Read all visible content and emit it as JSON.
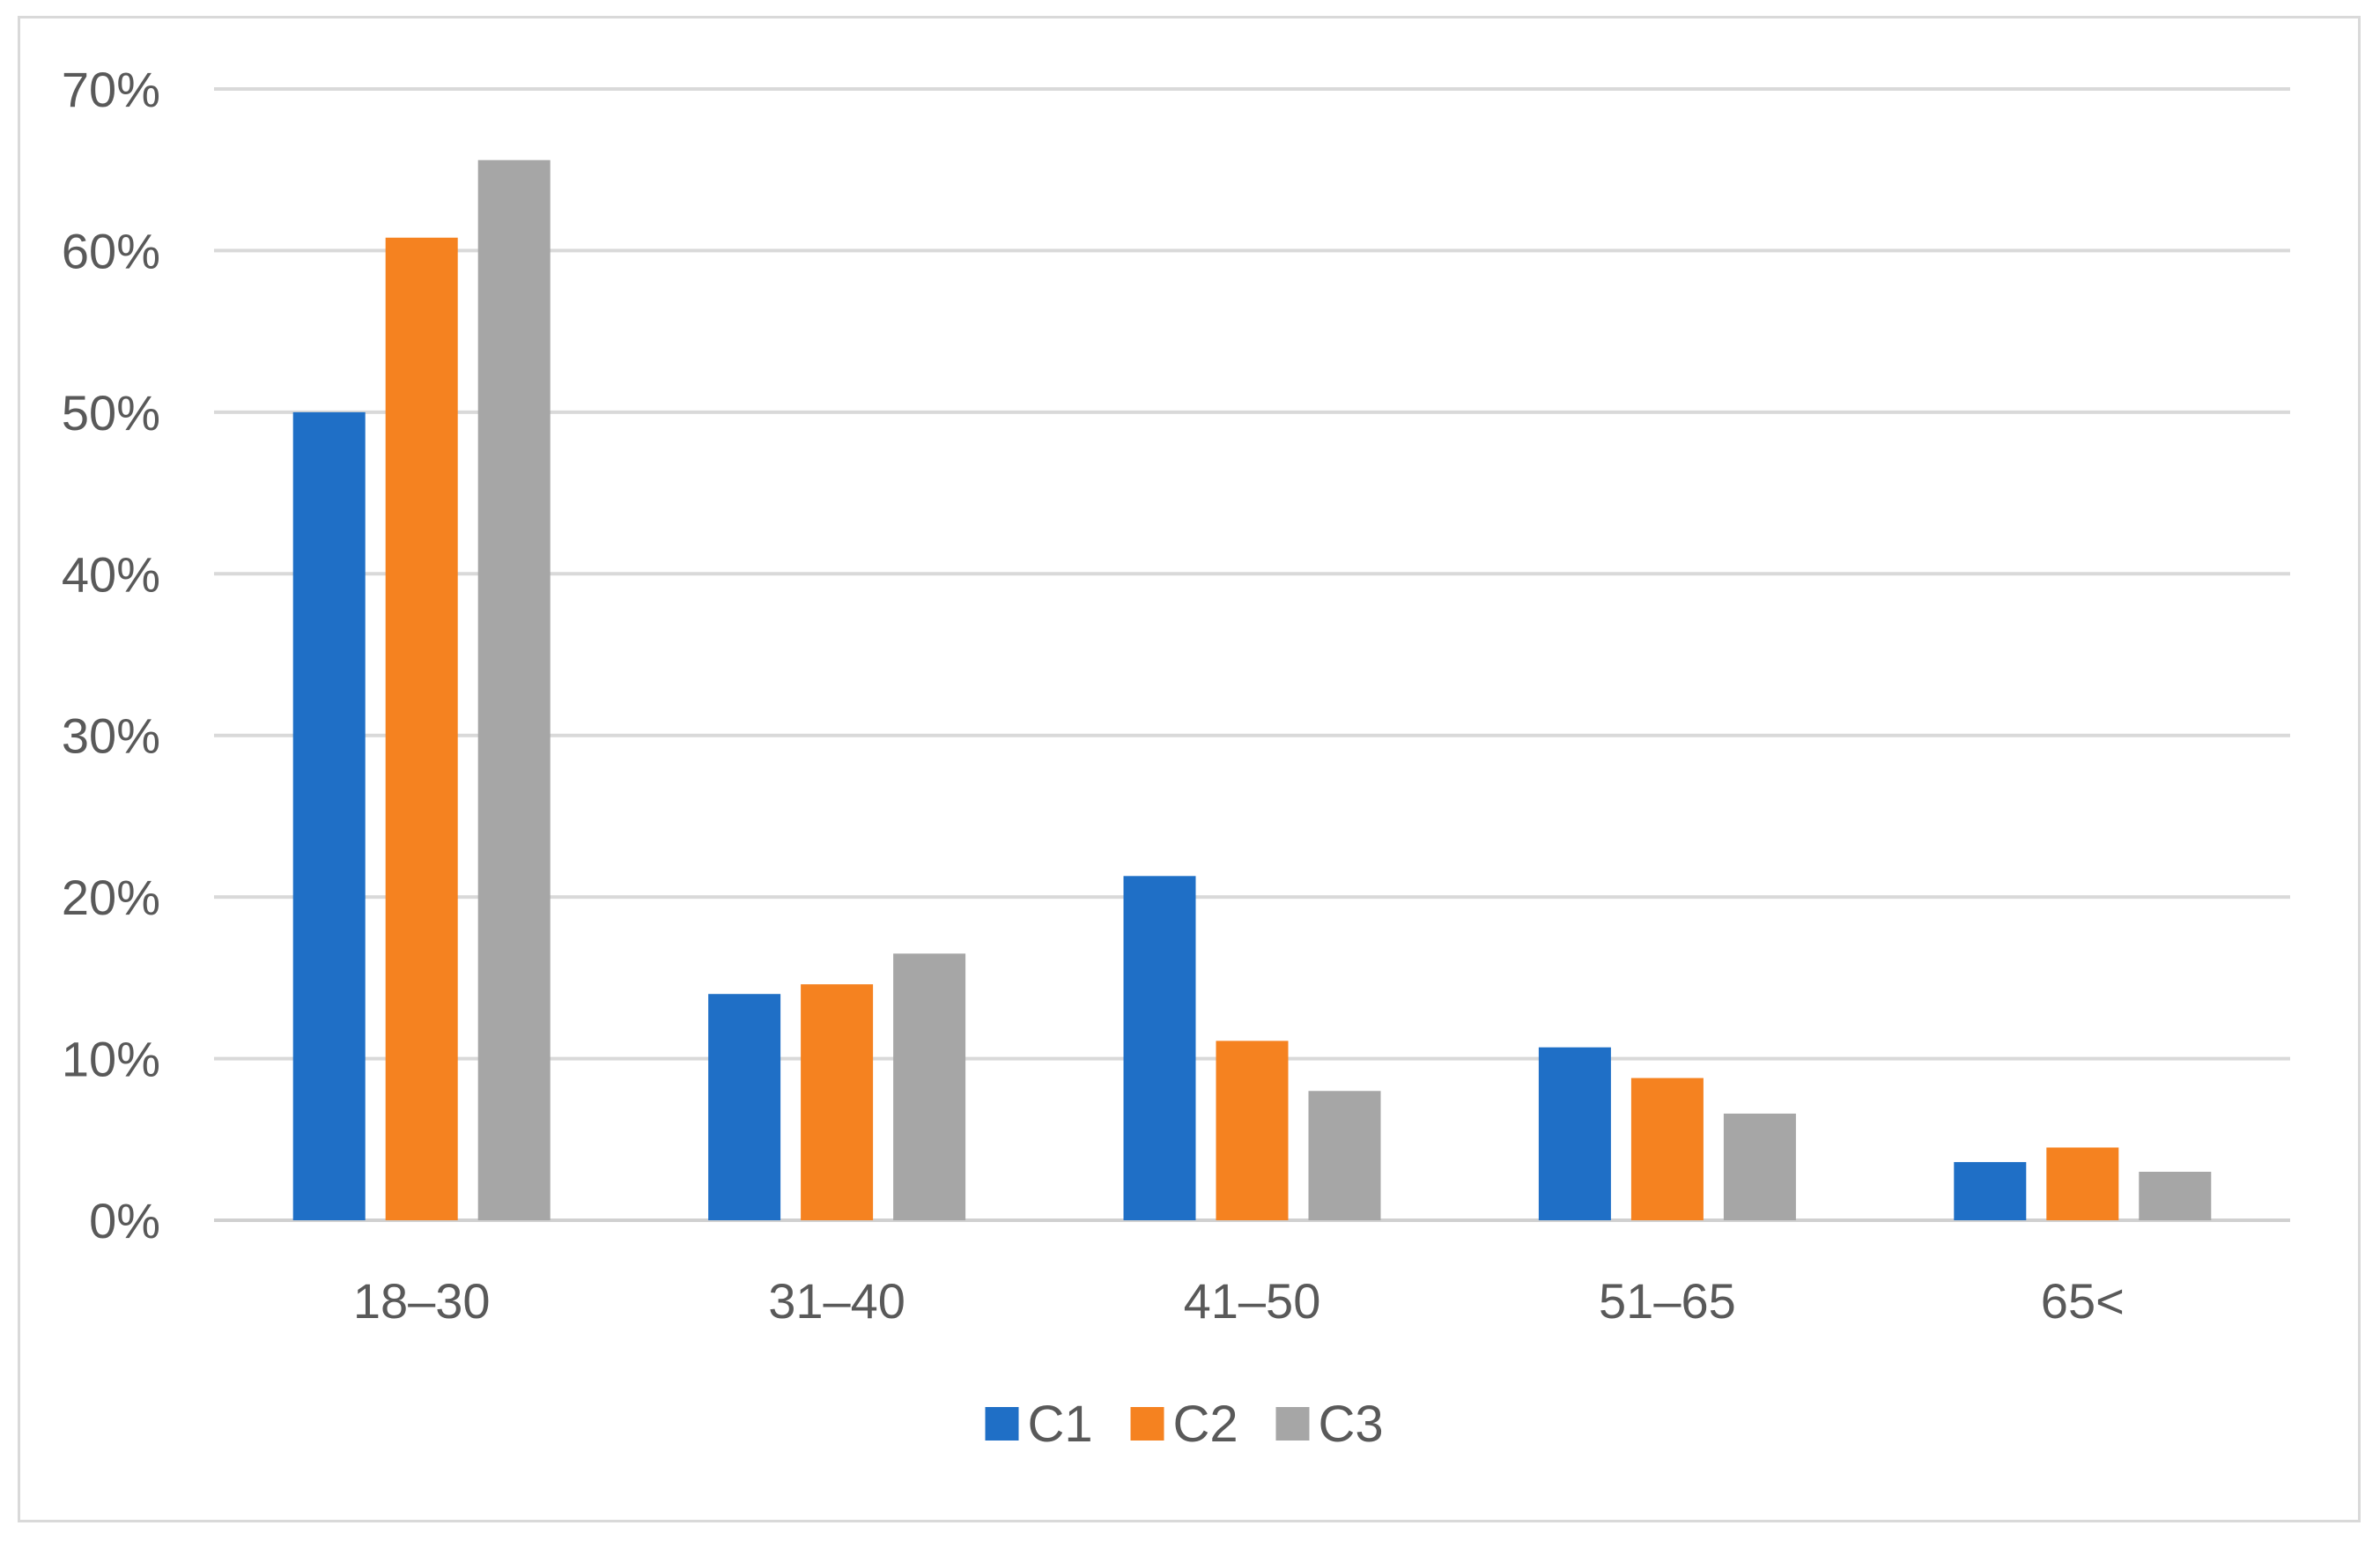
{
  "chart_data": {
    "type": "bar",
    "title": "",
    "xlabel": "",
    "ylabel": "",
    "categories": [
      "18–30",
      "31–40",
      "41–50",
      "51–65",
      "65<"
    ],
    "series": [
      {
        "name": "C1",
        "color": "#1f6fc6",
        "values": [
          50.0,
          14.0,
          21.3,
          10.7,
          3.6
        ]
      },
      {
        "name": "C2",
        "color": "#f58220",
        "values": [
          60.8,
          14.6,
          11.1,
          8.8,
          4.5
        ]
      },
      {
        "name": "C3",
        "color": "#a6a6a6",
        "values": [
          65.6,
          16.5,
          8.0,
          6.6,
          3.0
        ]
      }
    ],
    "ylim": [
      0,
      70
    ],
    "yticks": [
      "0%",
      "10%",
      "20%",
      "30%",
      "40%",
      "50%",
      "60%",
      "70%"
    ],
    "grid": true,
    "legend_position": "bottom-center"
  }
}
